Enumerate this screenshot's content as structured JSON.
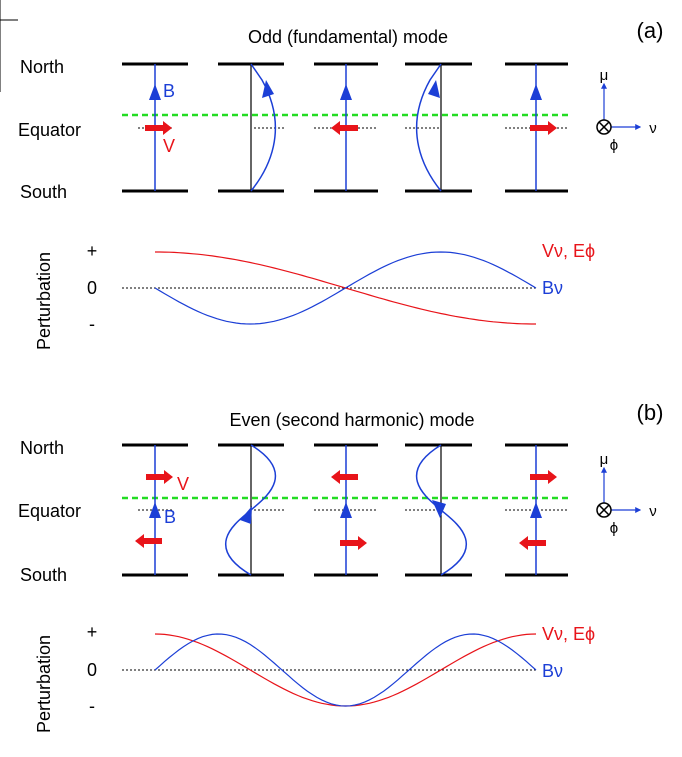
{
  "panels": [
    {
      "id": "a",
      "panel_label": "(a)",
      "title": "Odd (fundamental) mode",
      "north": "North",
      "equator": "Equator",
      "south": "South",
      "b_label": "B",
      "v_label": "V",
      "axis_labels": {
        "up": "μ",
        "right": "ν",
        "into": "ϕ"
      },
      "perturbation": {
        "ylabel": "Perturbation",
        "plus": "+",
        "zero": "0",
        "minus": "-",
        "v_e_label": "Vν, Eϕ",
        "b_label": "Bν"
      }
    },
    {
      "id": "b",
      "panel_label": "(b)",
      "title": "Even (second harmonic) mode",
      "north": "North",
      "equator": "Equator",
      "south": "South",
      "b_label": "B",
      "v_label": "V",
      "axis_labels": {
        "up": "μ",
        "right": "ν",
        "into": "ϕ"
      },
      "perturbation": {
        "ylabel": "Perturbation",
        "plus": "+",
        "zero": "0",
        "minus": "-",
        "v_e_label": "Vν, Eϕ",
        "b_label": "Bν"
      }
    }
  ],
  "colors": {
    "field": "#1c3fd6",
    "velocity": "#e8141a",
    "equator_line": "#22dd22",
    "structure": "#000000"
  }
}
